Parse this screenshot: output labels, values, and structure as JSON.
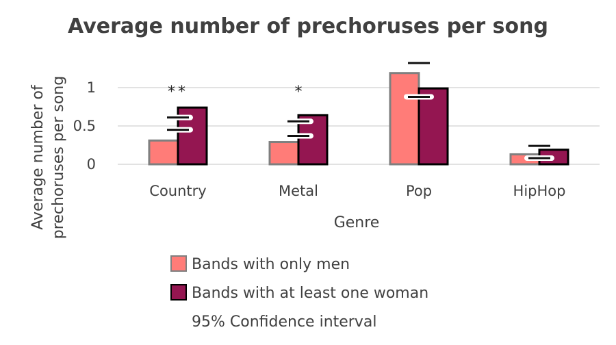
{
  "chart_data": {
    "type": "bar",
    "title": "Average number of prechoruses per song",
    "xlabel": "Genre",
    "ylabel": [
      "Average number of",
      "prechoruses per song"
    ],
    "categories": [
      "Country",
      "Metal",
      "Pop",
      "HipHop"
    ],
    "ylim": [
      0,
      1.3
    ],
    "yticks": [
      {
        "value": 0,
        "label": "0"
      },
      {
        "value": 0.5,
        "label": "0.5"
      },
      {
        "value": 1,
        "label": "1"
      }
    ],
    "grid": true,
    "series": [
      {
        "name": "Bands with only men",
        "color": "#FF7C78",
        "border": "#7F7F7F",
        "values": [
          0.31,
          0.29,
          1.19,
          0.13
        ]
      },
      {
        "name": "Bands with at least one woman",
        "color": "#941651",
        "border": "#000000",
        "values": [
          0.74,
          0.64,
          0.99,
          0.19
        ]
      }
    ],
    "confidence_intervals": [
      {
        "category": "Country",
        "lower": 0.45,
        "upper": 0.61
      },
      {
        "category": "Metal",
        "lower": 0.37,
        "upper": 0.56
      },
      {
        "category": "Pop",
        "lower": 0.88,
        "upper": 1.32
      },
      {
        "category": "HipHop",
        "lower": 0.08,
        "upper": 0.24
      }
    ],
    "significance": [
      {
        "category": "Country",
        "label": "**"
      },
      {
        "category": "Metal",
        "label": "*"
      },
      {
        "category": "Pop",
        "label": ""
      },
      {
        "category": "HipHop",
        "label": ""
      }
    ],
    "legend": {
      "position": "bottom",
      "ci_label": "95% Confidence interval"
    }
  }
}
